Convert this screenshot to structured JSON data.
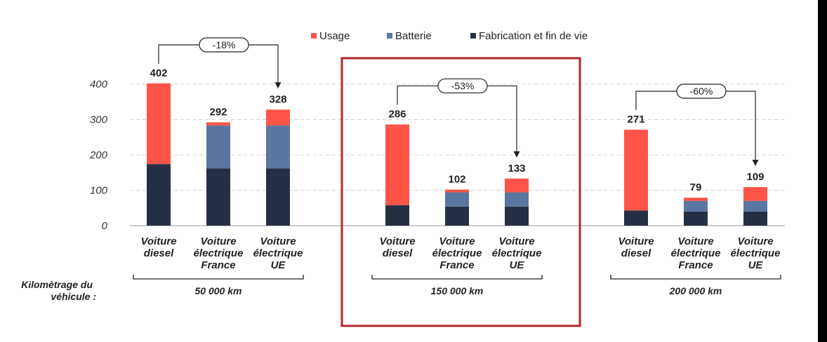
{
  "colors": {
    "usage": "#ff5549",
    "batterie": "#5a76a1",
    "fabrication": "#263045",
    "highlight": "#b0282a",
    "grid": "#d4d4d4",
    "text": "#222222"
  },
  "chart_data": {
    "type": "bar",
    "stacked": true,
    "ylim": [
      0,
      400
    ],
    "yticks": [
      "0",
      "100",
      "200",
      "300",
      "400"
    ],
    "legend": [
      "Usage",
      "Batterie",
      "Fabrication et fin de vie"
    ],
    "kilometrage_label": [
      "Kilomètrage du",
      "véhicule :"
    ],
    "groups": [
      {
        "label": "50 000 km",
        "reduction": "-18%",
        "highlighted": false,
        "bars": [
          {
            "label": [
              "Voiture",
              "diesel"
            ],
            "fabrication": 174,
            "batterie": 0,
            "usage": 228,
            "total": "402"
          },
          {
            "label": [
              "Voiture",
              "électrique",
              "France"
            ],
            "fabrication": 162,
            "batterie": 121,
            "usage": 9,
            "total": "292"
          },
          {
            "label": [
              "Voiture",
              "électrique",
              "UE"
            ],
            "fabrication": 162,
            "batterie": 121,
            "usage": 45,
            "total": "328"
          }
        ]
      },
      {
        "label": "150 000 km",
        "reduction": "-53%",
        "highlighted": true,
        "bars": [
          {
            "label": [
              "Voiture",
              "diesel"
            ],
            "fabrication": 58,
            "batterie": 0,
            "usage": 228,
            "total": "286"
          },
          {
            "label": [
              "Voiture",
              "électrique",
              "France"
            ],
            "fabrication": 54,
            "batterie": 40,
            "usage": 8,
            "total": "102"
          },
          {
            "label": [
              "Voiture",
              "électrique",
              "UE"
            ],
            "fabrication": 54,
            "batterie": 40,
            "usage": 39,
            "total": "133"
          }
        ]
      },
      {
        "label": "200 000 km",
        "reduction": "-60%",
        "highlighted": false,
        "bars": [
          {
            "label": [
              "Voiture",
              "diesel"
            ],
            "fabrication": 43,
            "batterie": 0,
            "usage": 228,
            "total": "271"
          },
          {
            "label": [
              "Voiture",
              "électrique",
              "France"
            ],
            "fabrication": 40,
            "batterie": 30,
            "usage": 9,
            "total": "79"
          },
          {
            "label": [
              "Voiture",
              "électrique",
              "UE"
            ],
            "fabrication": 40,
            "batterie": 30,
            "usage": 39,
            "total": "109"
          }
        ]
      }
    ]
  }
}
